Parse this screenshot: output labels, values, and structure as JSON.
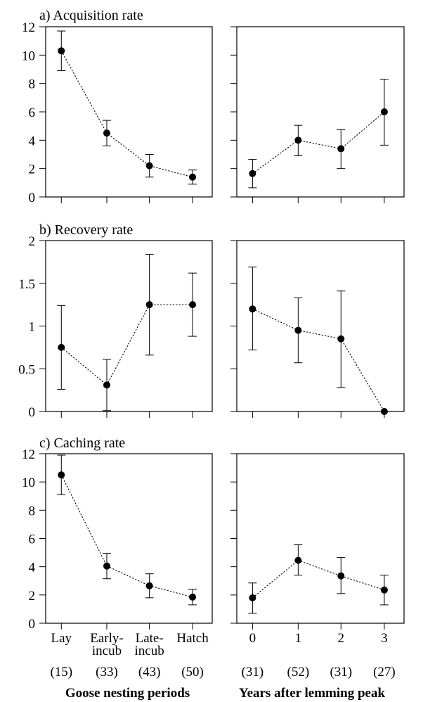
{
  "chart_data": [
    {
      "type": "scatter",
      "title": "a) Acquisition rate",
      "ylim": [
        0,
        12
      ],
      "yticks": [
        "0",
        "2",
        "4",
        "6",
        "8",
        "10",
        "12"
      ],
      "panels": [
        {
          "categories": [
            "Lay",
            "Early-incub",
            "Late-incub",
            "Hatch"
          ],
          "series": [
            {
              "values": [
                10.3,
                4.5,
                2.2,
                1.4
              ],
              "err_low": [
                8.9,
                3.6,
                1.4,
                0.9
              ],
              "err_high": [
                11.7,
                5.4,
                3.0,
                1.9
              ]
            }
          ]
        },
        {
          "categories": [
            "0",
            "1",
            "2",
            "3"
          ],
          "series": [
            {
              "values": [
                1.65,
                4.0,
                3.4,
                6.0
              ],
              "err_low": [
                0.65,
                2.9,
                2.0,
                3.65
              ],
              "err_high": [
                2.65,
                5.05,
                4.75,
                8.3
              ]
            }
          ]
        }
      ]
    },
    {
      "type": "scatter",
      "title": "b) Recovery rate",
      "ylim": [
        0,
        2
      ],
      "yticks": [
        "0",
        "0.5",
        "1",
        "1.5",
        "2"
      ],
      "panels": [
        {
          "categories": [
            "Lay",
            "Early-incub",
            "Late-incub",
            "Hatch"
          ],
          "series": [
            {
              "values": [
                0.75,
                0.31,
                1.25,
                1.25
              ],
              "err_low": [
                0.26,
                0.01,
                0.66,
                0.88
              ],
              "err_high": [
                1.24,
                0.61,
                1.84,
                1.62
              ]
            }
          ]
        },
        {
          "categories": [
            "0",
            "1",
            "2",
            "3"
          ],
          "series": [
            {
              "values": [
                1.2,
                0.95,
                0.85,
                0.0
              ],
              "err_low": [
                0.72,
                0.57,
                0.28,
                0.0
              ],
              "err_high": [
                1.69,
                1.33,
                1.41,
                0.0
              ]
            }
          ]
        }
      ]
    },
    {
      "type": "scatter",
      "title": "c) Caching rate",
      "ylim": [
        0,
        12
      ],
      "yticks": [
        "0",
        "2",
        "4",
        "6",
        "8",
        "10",
        "12"
      ],
      "panels": [
        {
          "categories": [
            "Lay",
            "Early-incub",
            "Late-incub",
            "Hatch"
          ],
          "series": [
            {
              "values": [
                10.5,
                4.05,
                2.65,
                1.85
              ],
              "err_low": [
                9.1,
                3.15,
                1.8,
                1.3
              ],
              "err_high": [
                11.9,
                4.95,
                3.5,
                2.4
              ]
            }
          ]
        },
        {
          "categories": [
            "0",
            "1",
            "2",
            "3"
          ],
          "series": [
            {
              "values": [
                1.8,
                4.45,
                3.35,
                2.35
              ],
              "err_low": [
                0.7,
                3.4,
                2.1,
                1.3
              ],
              "err_high": [
                2.85,
                5.55,
                4.65,
                3.4
              ]
            }
          ]
        }
      ]
    }
  ],
  "x_axes": {
    "left": {
      "tick_labels": [
        [
          "Lay"
        ],
        [
          "Early-",
          "incub"
        ],
        [
          "Late-",
          "incub"
        ],
        [
          "Hatch"
        ]
      ],
      "sample_sizes": [
        "(15)",
        "(33)",
        "(43)",
        "(50)"
      ],
      "xlabel": "Goose nesting periods"
    },
    "right": {
      "tick_labels": [
        [
          "0"
        ],
        [
          "1"
        ],
        [
          "2"
        ],
        [
          "3"
        ]
      ],
      "sample_sizes": [
        "(31)",
        "(52)",
        "(31)",
        "(27)"
      ],
      "xlabel": "Years after lemming peak"
    }
  }
}
